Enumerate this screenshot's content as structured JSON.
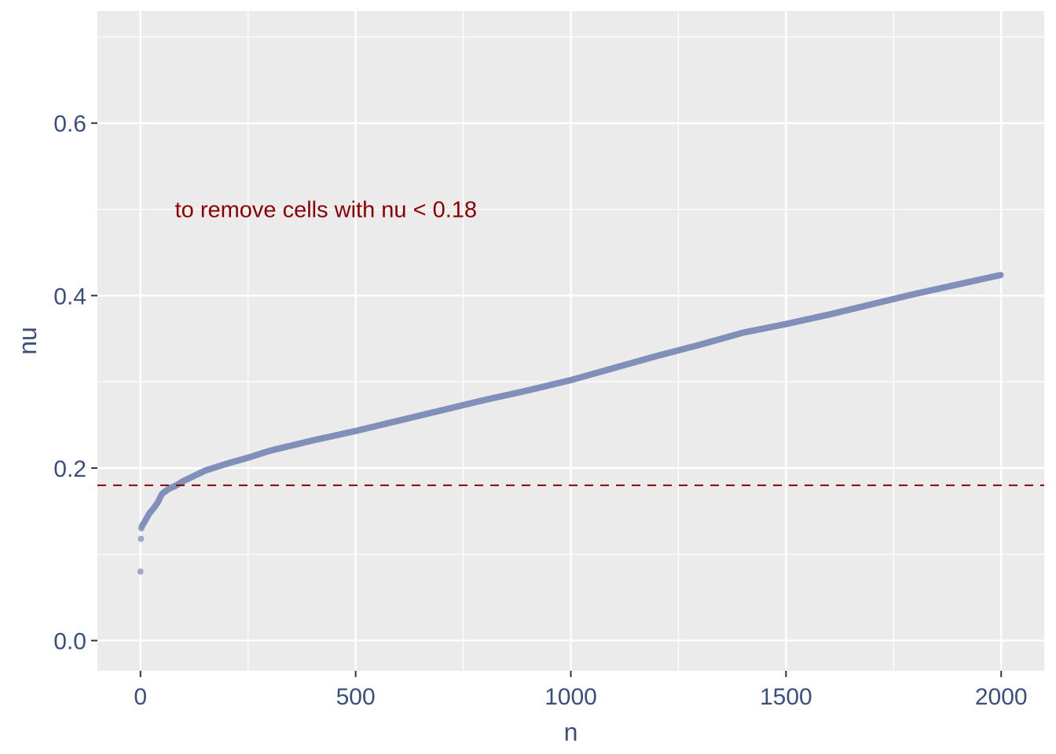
{
  "chart_data": {
    "type": "scatter",
    "xlabel": "n",
    "ylabel": "nu",
    "xlim": [
      -100,
      2100
    ],
    "ylim": [
      -0.035,
      0.73
    ],
    "x_ticks": [
      0,
      500,
      1000,
      1500,
      2000
    ],
    "x_tick_labels": [
      "0",
      "500",
      "1000",
      "1500",
      "2000"
    ],
    "y_ticks": [
      0.0,
      0.2,
      0.4,
      0.6
    ],
    "y_tick_labels": [
      "0.0",
      "0.2",
      "0.4",
      "0.6"
    ],
    "x_minor_grid": [
      250,
      750,
      1250,
      1750
    ],
    "y_minor_grid": [
      0.1,
      0.3,
      0.5,
      0.7
    ],
    "grid": true,
    "point_color": "#8090ba",
    "panel_background": "#ebebeb",
    "threshold_line": {
      "y": 0.18,
      "style": "dashed",
      "color": "#8b0000"
    },
    "annotation": {
      "text": "to remove cells with nu <  0.18",
      "x": 80,
      "y": 0.5,
      "color": "#8b0000"
    },
    "curve_knots": {
      "x": [
        0,
        1,
        2,
        3,
        5,
        10,
        20,
        30,
        40,
        50,
        60,
        70,
        80,
        100,
        150,
        200,
        250,
        300,
        400,
        500,
        600,
        700,
        800,
        900,
        1000,
        1100,
        1200,
        1300,
        1400,
        1500,
        1600,
        1700,
        1800,
        1900,
        2000
      ],
      "y": [
        0.08,
        0.118,
        0.13,
        0.132,
        0.134,
        0.138,
        0.147,
        0.153,
        0.16,
        0.17,
        0.174,
        0.177,
        0.179,
        0.185,
        0.197,
        0.205,
        0.212,
        0.22,
        0.232,
        0.243,
        0.255,
        0.267,
        0.279,
        0.29,
        0.302,
        0.316,
        0.33,
        0.343,
        0.357,
        0.367,
        0.378,
        0.39,
        0.402,
        0.413,
        0.424
      ]
    },
    "n_points": 2000
  }
}
